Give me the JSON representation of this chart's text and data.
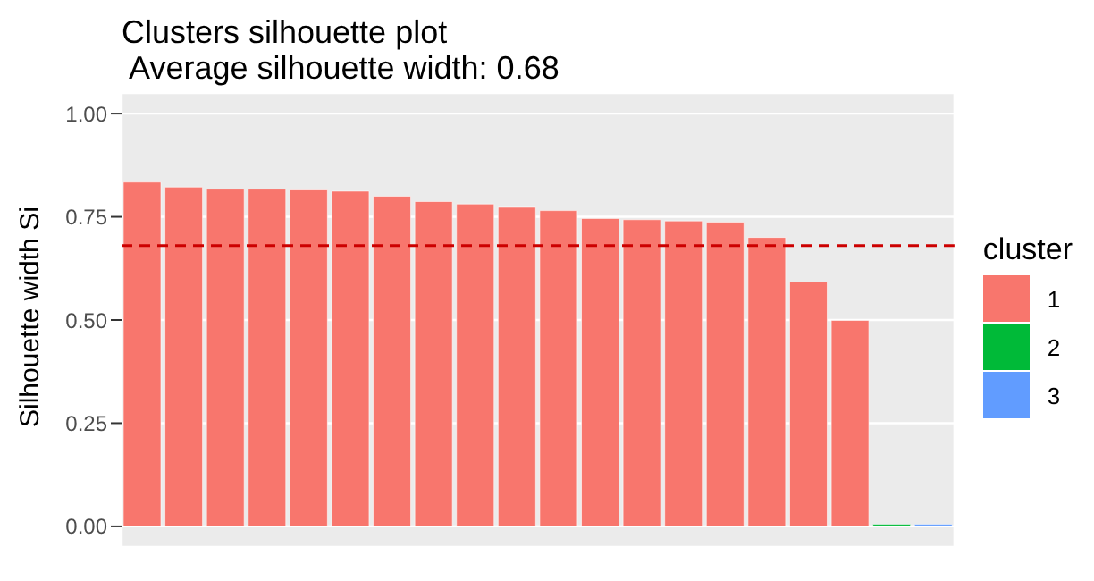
{
  "chart_data": {
    "type": "bar",
    "title": "Clusters silhouette plot",
    "subtitle": " Average silhouette width: 0.68",
    "ylabel": "Silhouette width Si",
    "legend_title": "cluster",
    "categories": [
      null,
      null,
      null,
      null,
      null,
      null,
      null,
      null,
      null,
      null,
      null,
      null,
      null,
      null,
      null,
      null,
      null,
      null,
      null,
      null
    ],
    "series": [
      {
        "name": "1",
        "color": "#f8766d",
        "values": [
          0.834,
          0.822,
          0.817,
          0.817,
          0.815,
          0.812,
          0.8,
          0.787,
          0.781,
          0.773,
          0.765,
          0.746,
          0.743,
          0.74,
          0.737,
          0.7,
          0.592,
          0.499,
          null,
          null
        ]
      },
      {
        "name": "2",
        "color": "#00ba38",
        "values": [
          null,
          null,
          null,
          null,
          null,
          null,
          null,
          null,
          null,
          null,
          null,
          null,
          null,
          null,
          null,
          null,
          null,
          null,
          0.005,
          null
        ]
      },
      {
        "name": "3",
        "color": "#619cff",
        "values": [
          null,
          null,
          null,
          null,
          null,
          null,
          null,
          null,
          null,
          null,
          null,
          null,
          null,
          null,
          null,
          null,
          null,
          null,
          null,
          0.005
        ]
      }
    ],
    "stacked": true,
    "ylim": [
      -0.05,
      1.05
    ],
    "yticks": [
      {
        "value": 0,
        "label": "0.00"
      },
      {
        "value": 0.25,
        "label": "0.25"
      },
      {
        "value": 0.5,
        "label": "0.50"
      },
      {
        "value": 0.75,
        "label": "0.75"
      },
      {
        "value": 1,
        "label": "1.00"
      }
    ],
    "ref_lines": [
      {
        "axis": "y",
        "value": 0.68,
        "color": "#cc0000",
        "line_style": "dashed"
      }
    ],
    "grid": true,
    "legend": "right",
    "tick_labels": "y"
  }
}
